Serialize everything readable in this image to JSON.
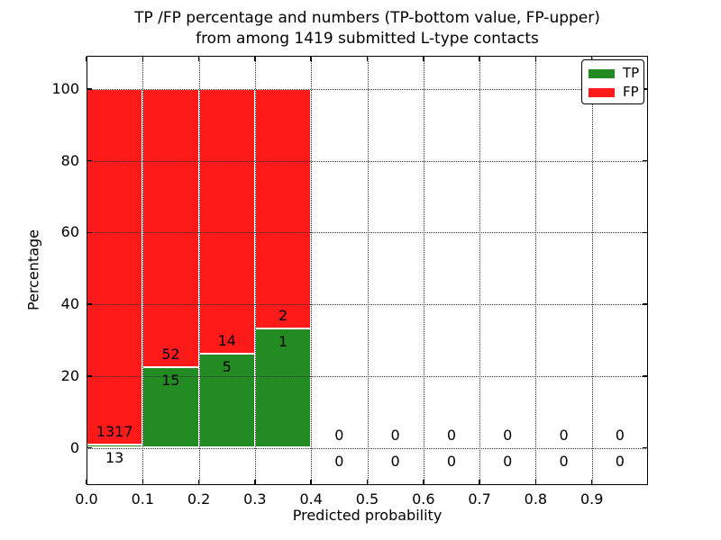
{
  "chart_data": {
    "type": "bar",
    "stacked": true,
    "title_line1": "TP /FP percentage and numbers (TP-bottom value, FP-upper)",
    "title_line2": "from among 1419 submitted L-type contacts",
    "xlabel": "Predicted probability",
    "ylabel": "Percentage",
    "total_contacts": 1419,
    "legend": {
      "position": "upper right",
      "entries": [
        {
          "label": "TP",
          "color": "#228b22"
        },
        {
          "label": "FP",
          "color": "#ff1a1a"
        }
      ]
    },
    "axes": {
      "xlim": [
        0.0,
        1.0
      ],
      "ylim": [
        -10.5,
        109.5
      ],
      "x_ticks": [
        "0.0",
        "0.1",
        "0.2",
        "0.3",
        "0.4",
        "0.5",
        "0.6",
        "0.7",
        "0.8",
        "0.9"
      ],
      "x_tick_values": [
        0.0,
        0.1,
        0.2,
        0.3,
        0.4,
        0.5,
        0.6,
        0.7,
        0.8,
        0.9
      ],
      "y_ticks": [
        "0",
        "20",
        "40",
        "60",
        "80",
        "100"
      ],
      "y_tick_values": [
        0,
        20,
        40,
        60,
        80,
        100
      ],
      "grid": true,
      "grid_style": "dotted"
    },
    "bins": [
      {
        "x0": 0.0,
        "x1": 0.1,
        "tp_count": 13,
        "fp_count": 1317,
        "tp_pct": 0.98,
        "fp_pct": 99.02
      },
      {
        "x0": 0.1,
        "x1": 0.2,
        "tp_count": 15,
        "fp_count": 52,
        "tp_pct": 22.39,
        "fp_pct": 77.61
      },
      {
        "x0": 0.2,
        "x1": 0.3,
        "tp_count": 5,
        "fp_count": 14,
        "tp_pct": 26.32,
        "fp_pct": 73.68
      },
      {
        "x0": 0.3,
        "x1": 0.4,
        "tp_count": 1,
        "fp_count": 2,
        "tp_pct": 33.33,
        "fp_pct": 66.67
      },
      {
        "x0": 0.4,
        "x1": 0.5,
        "tp_count": 0,
        "fp_count": 0,
        "tp_pct": 0,
        "fp_pct": 0
      },
      {
        "x0": 0.5,
        "x1": 0.6,
        "tp_count": 0,
        "fp_count": 0,
        "tp_pct": 0,
        "fp_pct": 0
      },
      {
        "x0": 0.6,
        "x1": 0.7,
        "tp_count": 0,
        "fp_count": 0,
        "tp_pct": 0,
        "fp_pct": 0
      },
      {
        "x0": 0.7,
        "x1": 0.8,
        "tp_count": 0,
        "fp_count": 0,
        "tp_pct": 0,
        "fp_pct": 0
      },
      {
        "x0": 0.8,
        "x1": 0.9,
        "tp_count": 0,
        "fp_count": 0,
        "tp_pct": 0,
        "fp_pct": 0
      },
      {
        "x0": 0.9,
        "x1": 1.0,
        "tp_count": 0,
        "fp_count": 0,
        "tp_pct": 0,
        "fp_pct": 0
      }
    ],
    "colors": {
      "tp": "#228b22",
      "fp": "#ff1a1a",
      "grid": "#333333",
      "frame": "#000000",
      "bar_edge": "#ffffff",
      "background": "#ffffff"
    }
  }
}
